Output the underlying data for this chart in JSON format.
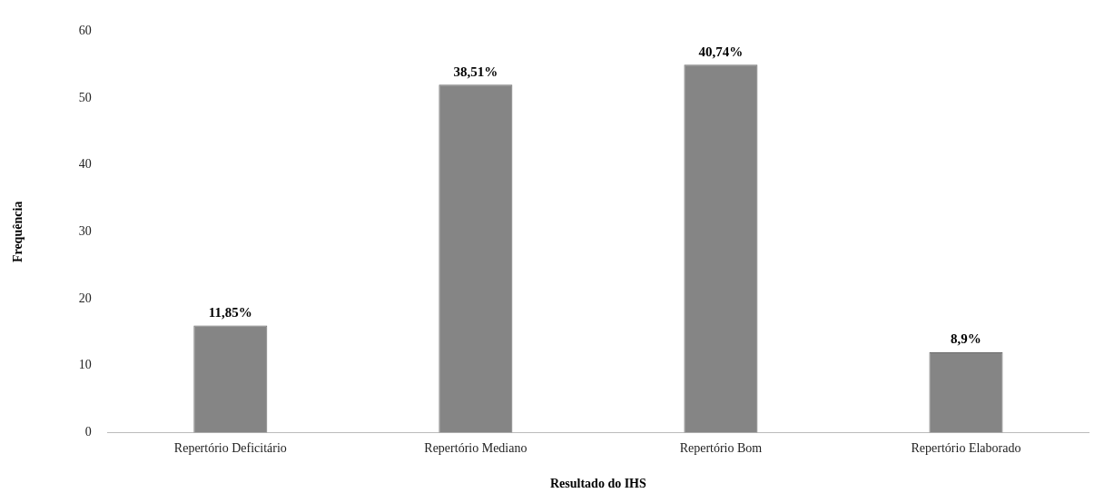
{
  "chart_data": {
    "type": "bar",
    "xlabel": "Resultado do IHS",
    "ylabel": "Frequência",
    "categories": [
      "Repertório Deficitário",
      "Repertório Mediano",
      "Repertório Bom",
      "Repertório Elaborado"
    ],
    "values": [
      16,
      52,
      55,
      12
    ],
    "color": "#858585",
    "annotations": [
      {
        "text": "11,85%",
        "x": "Repertório Deficitário",
        "y": 16
      },
      {
        "text": "38,51%",
        "x": "Repertório Mediano",
        "y": 52
      },
      {
        "text": "40,74%",
        "x": "Repertório Bom",
        "y": 55
      },
      {
        "text": "8,9%",
        "x": "Repertório Elaborado",
        "y": 12
      }
    ],
    "ylim": [
      0,
      60
    ],
    "yticks": [
      0,
      10,
      20,
      30,
      40,
      50,
      60
    ],
    "grid": false,
    "legend": false
  }
}
